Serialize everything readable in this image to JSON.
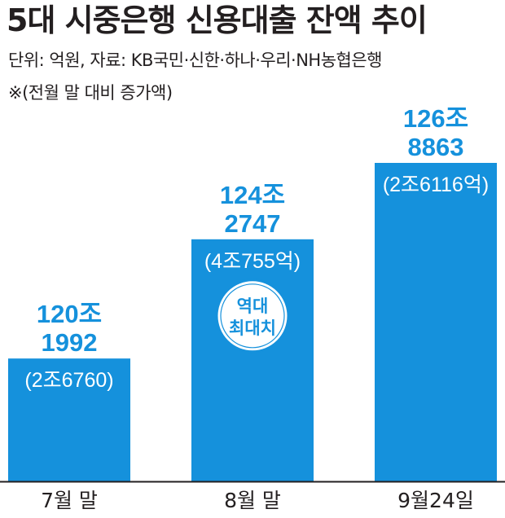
{
  "header": {
    "title": "5대 시중은행 신용대출 잔액 추이",
    "source": "단위: 억원, 자료: KB국민·신한·하나·우리·NH농협은행",
    "note": "※(전월 말 대비 증가액)"
  },
  "colors": {
    "bar": "#1591dc",
    "value_text": "#1591dc",
    "axis": "#231f20"
  },
  "badge": {
    "line1": "역대",
    "line2": "최대치"
  },
  "chart_data": {
    "type": "bar",
    "title": "5대 시중은행 신용대출 잔액 추이",
    "unit": "억원",
    "categories": [
      "7월 말",
      "8월 말",
      "9월24일"
    ],
    "values": [
      1201992,
      1242747,
      1268863
    ],
    "value_labels": [
      [
        "120조",
        "1992"
      ],
      [
        "124조",
        "2747"
      ],
      [
        "126조",
        "8863"
      ]
    ],
    "increase_labels": [
      "(2조6760)",
      "(4조755억)",
      "(2조6116억)"
    ],
    "increases": [
      26760,
      40755,
      26116
    ],
    "record_category": "8월 말",
    "xlabel": "",
    "ylabel": "",
    "ylim": [
      1160000,
      1280000
    ],
    "grid": false,
    "legend": "none"
  }
}
